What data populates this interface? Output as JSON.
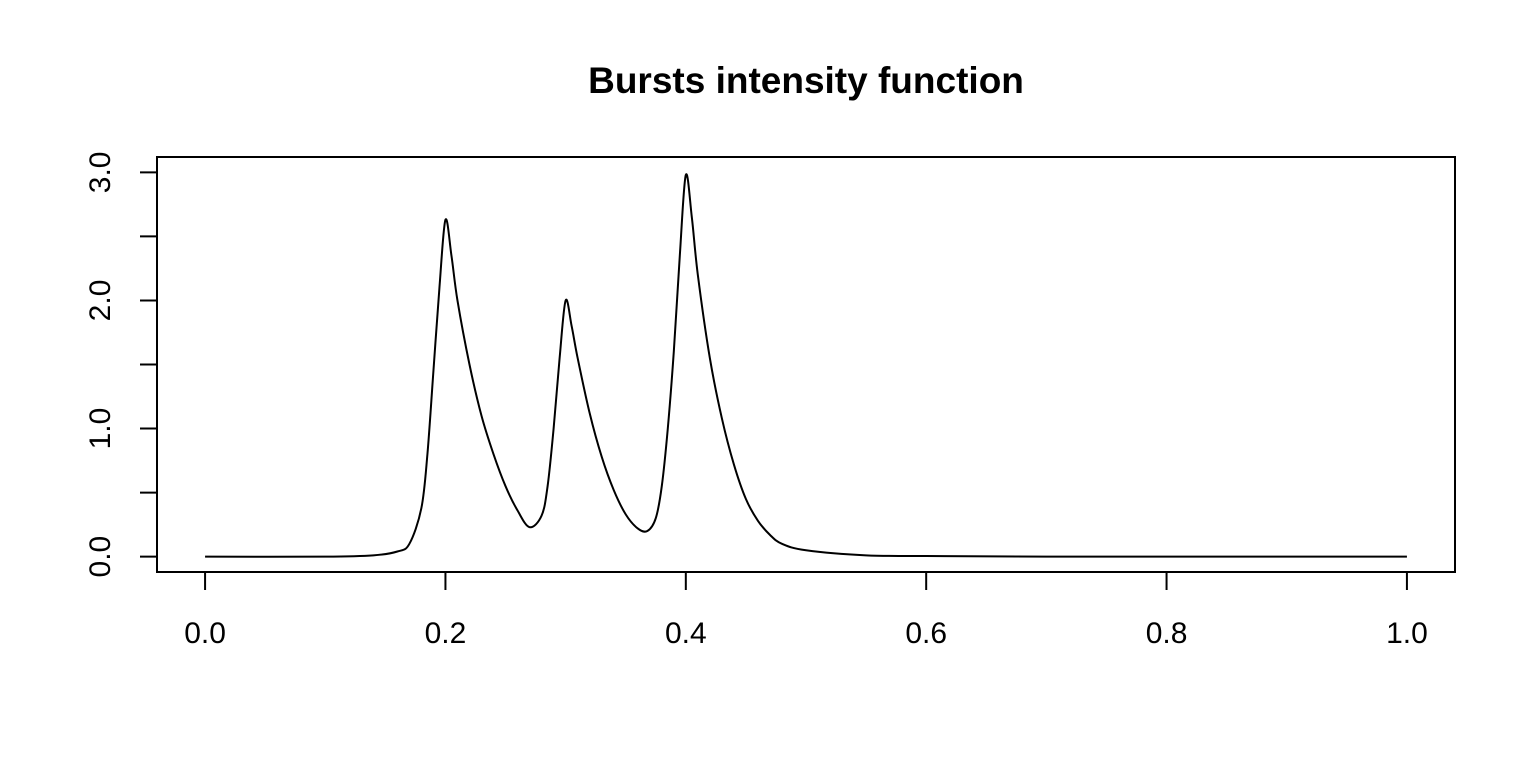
{
  "chart_data": {
    "type": "line",
    "title": "Bursts intensity function",
    "xlabel": "",
    "ylabel": "",
    "xlim": [
      -0.04,
      1.04
    ],
    "ylim": [
      -0.12,
      3.12
    ],
    "grid": false,
    "legend": "none",
    "line_color": "#000000",
    "x_ticks": [
      0.0,
      0.2,
      0.4,
      0.6,
      0.8,
      1.0
    ],
    "x_tick_labels": [
      "0.0",
      "0.2",
      "0.4",
      "0.6",
      "0.8",
      "1.0"
    ],
    "y_ticks": [
      0.0,
      0.5,
      1.0,
      1.5,
      2.0,
      2.5,
      3.0
    ],
    "y_tick_labels": [
      "0.0",
      "",
      "1.0",
      "",
      "2.0",
      "",
      "3.0"
    ],
    "series": [
      {
        "x": [
          0.0,
          0.1,
          0.14,
          0.16,
          0.17,
          0.18,
          0.185,
          0.19,
          0.195,
          0.2,
          0.205,
          0.21,
          0.22,
          0.23,
          0.24,
          0.25,
          0.26,
          0.27,
          0.28,
          0.285,
          0.29,
          0.295,
          0.3,
          0.305,
          0.31,
          0.32,
          0.33,
          0.34,
          0.35,
          0.36,
          0.368,
          0.375,
          0.38,
          0.385,
          0.39,
          0.395,
          0.4,
          0.405,
          0.41,
          0.42,
          0.43,
          0.44,
          0.45,
          0.46,
          0.47,
          0.48,
          0.5,
          0.55,
          0.6,
          0.7,
          1.0
        ],
        "y": [
          0.0,
          0.0,
          0.01,
          0.04,
          0.1,
          0.38,
          0.8,
          1.45,
          2.1,
          2.63,
          2.35,
          2.0,
          1.5,
          1.1,
          0.8,
          0.55,
          0.36,
          0.23,
          0.32,
          0.55,
          1.0,
          1.55,
          2.0,
          1.8,
          1.55,
          1.12,
          0.78,
          0.52,
          0.33,
          0.22,
          0.2,
          0.3,
          0.55,
          1.0,
          1.6,
          2.35,
          2.98,
          2.65,
          2.2,
          1.55,
          1.08,
          0.72,
          0.45,
          0.28,
          0.17,
          0.1,
          0.05,
          0.01,
          0.005,
          0.0,
          0.0
        ]
      }
    ]
  }
}
